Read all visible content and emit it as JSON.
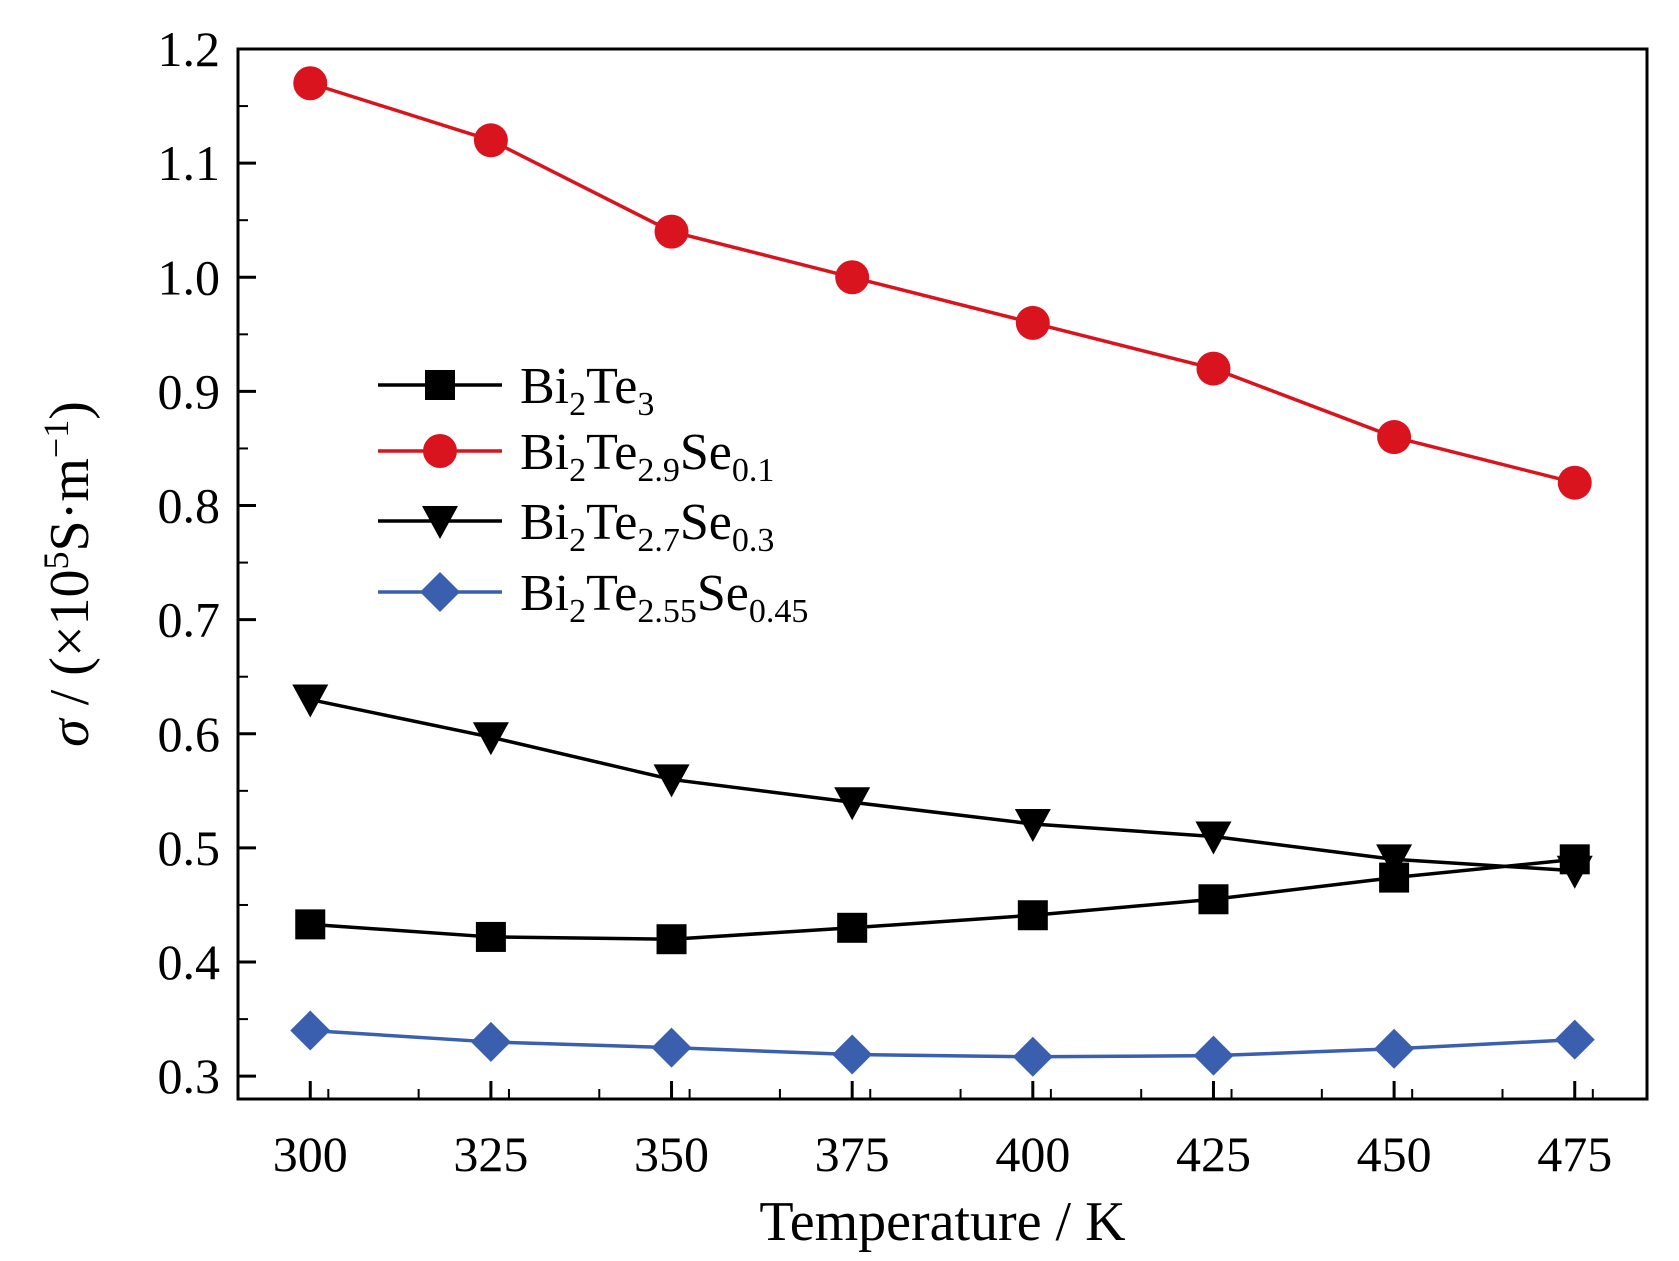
{
  "chart_data": {
    "type": "line",
    "xlabel": "Temperature / K",
    "ylabel_symbol": "σ",
    "ylabel_text": " / (×10",
    "ylabel_exp": "5",
    "ylabel_unit": "S·m",
    "ylabel_unit_exp": "−1",
    "ylabel_close": ")",
    "xlim": [
      290,
      485
    ],
    "ylim": [
      0.28,
      1.2
    ],
    "x": [
      300,
      325,
      350,
      375,
      400,
      425,
      450,
      475
    ],
    "xticks": [
      "300",
      "325",
      "350",
      "375",
      "400",
      "425",
      "450",
      "475"
    ],
    "yticks": [
      "0.3",
      "0.4",
      "0.5",
      "0.6",
      "0.7",
      "0.8",
      "0.9",
      "1.0",
      "1.1",
      "1.2"
    ],
    "legend_position": "upper-left",
    "series": [
      {
        "name": "Bi2Te3",
        "label_parts": [
          [
            "Bi",
            ""
          ],
          [
            "2",
            "sub"
          ],
          [
            "Te",
            ""
          ],
          [
            "3",
            "sub"
          ]
        ],
        "marker": "square",
        "color": "#000000",
        "values": [
          0.433,
          0.422,
          0.42,
          0.43,
          0.441,
          0.455,
          0.474,
          0.49
        ]
      },
      {
        "name": "Bi2Te2.9Se0.1",
        "label_parts": [
          [
            "Bi",
            ""
          ],
          [
            "2",
            "sub"
          ],
          [
            "Te",
            ""
          ],
          [
            "2.9",
            "sub"
          ],
          [
            "Se",
            ""
          ],
          [
            "0.1",
            "sub"
          ]
        ],
        "marker": "circle",
        "color": "#d9141e",
        "values": [
          1.17,
          1.12,
          1.04,
          1.0,
          0.96,
          0.92,
          0.86,
          0.82
        ]
      },
      {
        "name": "Bi2Te2.7Se0.3",
        "label_parts": [
          [
            "Bi",
            ""
          ],
          [
            "2",
            "sub"
          ],
          [
            "Te",
            ""
          ],
          [
            "2.7",
            "sub"
          ],
          [
            "Se",
            ""
          ],
          [
            "0.3",
            "sub"
          ]
        ],
        "marker": "triangle-down",
        "color": "#000000",
        "values": [
          0.63,
          0.597,
          0.56,
          0.54,
          0.521,
          0.51,
          0.49,
          0.48
        ]
      },
      {
        "name": "Bi2Te2.55Se0.45",
        "label_parts": [
          [
            "Bi",
            ""
          ],
          [
            "2",
            "sub"
          ],
          [
            "Te",
            ""
          ],
          [
            "2.55",
            "sub"
          ],
          [
            "Se",
            ""
          ],
          [
            "0.45",
            "sub"
          ]
        ],
        "marker": "diamond",
        "color": "#3a5fae",
        "values": [
          0.34,
          0.33,
          0.325,
          0.319,
          0.317,
          0.318,
          0.324,
          0.332
        ]
      }
    ]
  }
}
